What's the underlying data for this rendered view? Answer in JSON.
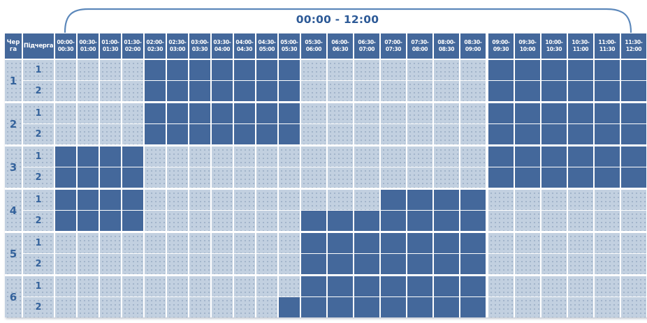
{
  "bracket_title": "00:00 - 12:00",
  "headers": {
    "queue": "Черга",
    "subqueue": "Підчерга"
  },
  "chart_data": {
    "type": "heatmap",
    "title": "00:00 - 12:00",
    "columns": [
      "00:00-00:30",
      "00:30-01:00",
      "01:00-01:30",
      "01:30-02:00",
      "02:00-02:30",
      "02:30-03:00",
      "03:00-03:30",
      "03:30-04:00",
      "04:00-04:30",
      "04:30-05:00",
      "05:00-05:30",
      "05:30-06:00",
      "06:00-06:30",
      "06:30-07:00",
      "07:00-07:30",
      "07:30-08:00",
      "08:00-08:30",
      "08:30-09:00",
      "09:00-09:30",
      "09:30-10:00",
      "10:00-10:30",
      "10:30-11:00",
      "11:00-11:30",
      "11:30-12:00"
    ],
    "values_encoding": "1 = dark blue filled cell, 0 = light blue cell",
    "rows": [
      {
        "queue": "1",
        "subqueue": "1",
        "values": [
          0,
          0,
          0,
          0,
          1,
          1,
          1,
          1,
          1,
          1,
          1,
          0,
          0,
          0,
          0,
          0,
          0,
          0,
          1,
          1,
          1,
          1,
          1,
          1
        ]
      },
      {
        "queue": "1",
        "subqueue": "2",
        "values": [
          0,
          0,
          0,
          0,
          1,
          1,
          1,
          1,
          1,
          1,
          1,
          0,
          0,
          0,
          0,
          0,
          0,
          0,
          1,
          1,
          1,
          1,
          1,
          1
        ]
      },
      {
        "queue": "2",
        "subqueue": "1",
        "values": [
          0,
          0,
          0,
          0,
          1,
          1,
          1,
          1,
          1,
          1,
          1,
          0,
          0,
          0,
          0,
          0,
          0,
          0,
          1,
          1,
          1,
          1,
          1,
          1
        ]
      },
      {
        "queue": "2",
        "subqueue": "2",
        "values": [
          0,
          0,
          0,
          0,
          1,
          1,
          1,
          1,
          1,
          1,
          1,
          0,
          0,
          0,
          0,
          0,
          0,
          0,
          1,
          1,
          1,
          1,
          1,
          1
        ]
      },
      {
        "queue": "3",
        "subqueue": "1",
        "values": [
          1,
          1,
          1,
          1,
          0,
          0,
          0,
          0,
          0,
          0,
          0,
          0,
          0,
          0,
          0,
          0,
          0,
          0,
          1,
          1,
          1,
          1,
          1,
          1
        ]
      },
      {
        "queue": "3",
        "subqueue": "2",
        "values": [
          1,
          1,
          1,
          1,
          0,
          0,
          0,
          0,
          0,
          0,
          0,
          0,
          0,
          0,
          0,
          0,
          0,
          0,
          1,
          1,
          1,
          1,
          1,
          1
        ]
      },
      {
        "queue": "4",
        "subqueue": "1",
        "values": [
          1,
          1,
          1,
          1,
          0,
          0,
          0,
          0,
          0,
          0,
          0,
          0,
          0,
          0,
          1,
          1,
          1,
          1,
          0,
          0,
          0,
          0,
          0,
          0
        ]
      },
      {
        "queue": "4",
        "subqueue": "2",
        "values": [
          1,
          1,
          1,
          1,
          0,
          0,
          0,
          0,
          0,
          0,
          0,
          1,
          1,
          1,
          1,
          1,
          1,
          1,
          0,
          0,
          0,
          0,
          0,
          0
        ]
      },
      {
        "queue": "5",
        "subqueue": "1",
        "values": [
          0,
          0,
          0,
          0,
          0,
          0,
          0,
          0,
          0,
          0,
          0,
          1,
          1,
          1,
          1,
          1,
          1,
          1,
          0,
          0,
          0,
          0,
          0,
          0
        ]
      },
      {
        "queue": "5",
        "subqueue": "2",
        "values": [
          0,
          0,
          0,
          0,
          0,
          0,
          0,
          0,
          0,
          0,
          0,
          1,
          1,
          1,
          1,
          1,
          1,
          1,
          0,
          0,
          0,
          0,
          0,
          0
        ]
      },
      {
        "queue": "6",
        "subqueue": "1",
        "values": [
          0,
          0,
          0,
          0,
          0,
          0,
          0,
          0,
          0,
          0,
          0,
          1,
          1,
          1,
          1,
          1,
          1,
          1,
          0,
          0,
          0,
          0,
          0,
          0
        ]
      },
      {
        "queue": "6",
        "subqueue": "2",
        "values": [
          0,
          0,
          0,
          0,
          0,
          0,
          0,
          0,
          0,
          0,
          1,
          1,
          1,
          1,
          1,
          1,
          1,
          1,
          0,
          0,
          0,
          0,
          0,
          0
        ]
      }
    ],
    "layout": {
      "narrow_columns": 11,
      "extra_gap_before_column": 18,
      "legend": "none",
      "grid": "white gaps between cells"
    }
  },
  "colors": {
    "background": "#FFFFFF",
    "cell_dark": "#44689B",
    "cell_light": "#C2D0E0",
    "header_bg": "#44689B",
    "header_text": "#FFFFFF",
    "number_text": "#35639C",
    "title_text": "#2D5A97",
    "bracket": "#5C88BB"
  }
}
